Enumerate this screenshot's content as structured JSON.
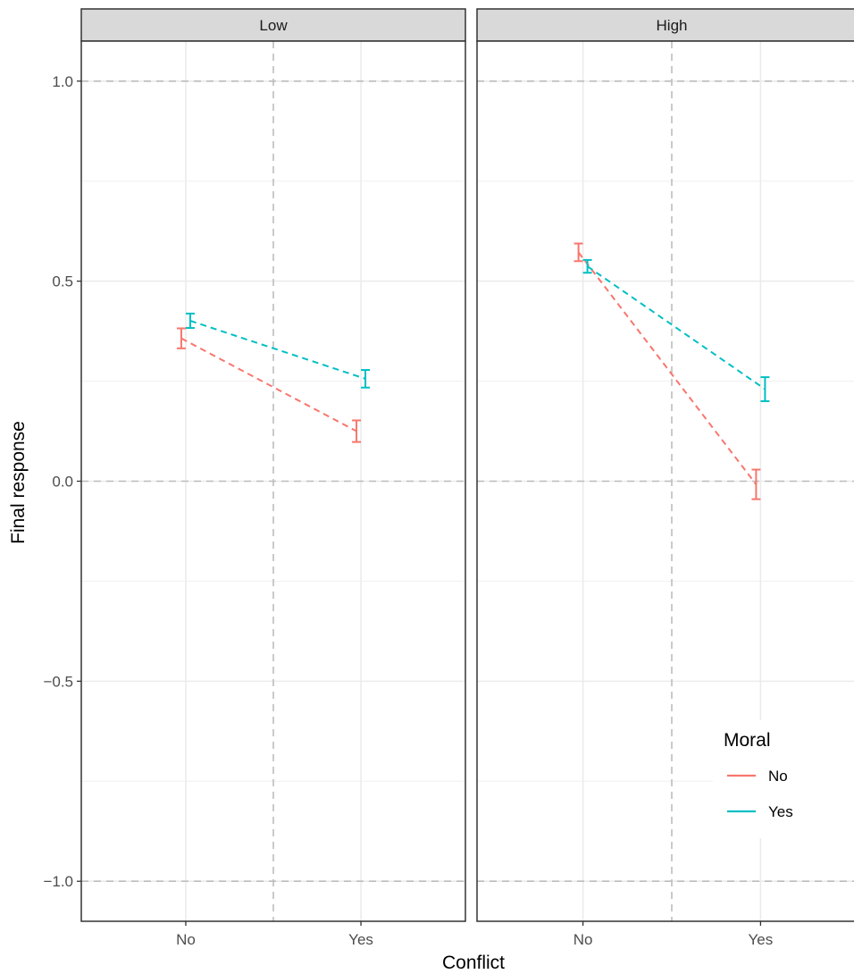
{
  "chart_data": {
    "type": "line",
    "facet_var": "",
    "panels": [
      {
        "label": "Low",
        "series": [
          {
            "name": "No",
            "color": "#F8766D",
            "values": [
              0.357,
              0.125
            ],
            "err": [
              0.025,
              0.027
            ]
          },
          {
            "name": "Yes",
            "color": "#00BFC4",
            "values": [
              0.401,
              0.256
            ],
            "err": [
              0.018,
              0.022
            ]
          }
        ]
      },
      {
        "label": "High",
        "series": [
          {
            "name": "No",
            "color": "#F8766D",
            "values": [
              0.572,
              -0.008
            ],
            "err": [
              0.022,
              0.037
            ]
          },
          {
            "name": "Yes",
            "color": "#00BFC4",
            "values": [
              0.537,
              0.23
            ],
            "err": [
              0.016,
              0.03
            ]
          }
        ]
      }
    ],
    "categories": [
      "No",
      "Yes"
    ],
    "xlabel": "Conflict",
    "ylabel": "Final response",
    "ylim": [
      -1.1,
      1.1
    ],
    "yticks": [
      -1.0,
      -0.5,
      0.0,
      0.5,
      1.0
    ],
    "ytick_labels": [
      "−1.0",
      "−0.5",
      "0.0",
      "0.5",
      "1.0"
    ],
    "reference_lines_y": [
      -1.0,
      0.0,
      1.0
    ],
    "line_style": "dashed",
    "grid": true,
    "legend": {
      "title": "Moral",
      "position": "bottom-right inside",
      "entries": [
        {
          "label": "No",
          "color": "#F8766D"
        },
        {
          "label": "Yes",
          "color": "#00BFC4"
        }
      ]
    }
  }
}
